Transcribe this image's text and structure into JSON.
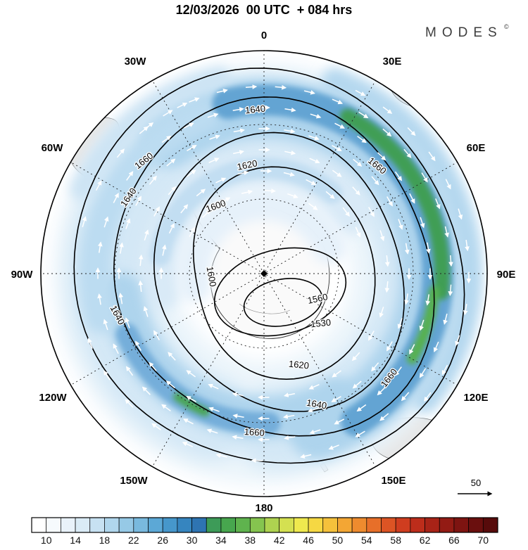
{
  "title": "12/03/2026  00 UTC  + 084 hrs",
  "logo": {
    "text": "MODES",
    "sup": "©"
  },
  "map": {
    "lon_labels": [
      "0",
      "30E",
      "60E",
      "90E",
      "120E",
      "150E",
      "180",
      "150W",
      "120W",
      "90W",
      "60W",
      "30W"
    ],
    "contour_labels": [
      "1640",
      "1660",
      "1660",
      "1620",
      "1600",
      "1640",
      "1600",
      "1560",
      "1530",
      "1620",
      "1640",
      "1660",
      "1660",
      "1640"
    ]
  },
  "ref_arrow": {
    "label": "50"
  },
  "colorbar": {
    "ticks": [
      "10",
      "14",
      "18",
      "22",
      "26",
      "30",
      "34",
      "38",
      "42",
      "46",
      "50",
      "54",
      "58",
      "62",
      "66",
      "70"
    ],
    "colors": [
      "#ffffff",
      "#f6fafd",
      "#e9f2fa",
      "#daebf6",
      "#c7e1f2",
      "#b0d6ed",
      "#96c9e6",
      "#79b9de",
      "#5ca8d6",
      "#4697cb",
      "#3685bf",
      "#2e74b2",
      "#3d9b58",
      "#47a64e",
      "#5fb34e",
      "#85c44f",
      "#aed250",
      "#d4e051",
      "#efe94e",
      "#f6d843",
      "#f5c13b",
      "#f3a634",
      "#ee8b2e",
      "#e76f29",
      "#dc5424",
      "#cf3d1f",
      "#bd2d1b",
      "#a82317",
      "#931b14",
      "#7e1411",
      "#6a0f0e",
      "#570b0b"
    ]
  },
  "chart_data": {
    "type": "heatmap",
    "title": "12/03/2026 00 UTC + 084 hrs",
    "projection": "south polar stereographic",
    "longitude_labels": [
      "0",
      "30E",
      "60E",
      "90E",
      "120E",
      "150E",
      "180",
      "150W",
      "120W",
      "90W",
      "60W",
      "30W"
    ],
    "contour_levels_labeled": [
      1530,
      1560,
      1600,
      1620,
      1640,
      1660
    ],
    "colorbar_ticks": [
      10,
      14,
      18,
      22,
      26,
      30,
      34,
      38,
      42,
      46,
      50,
      54,
      58,
      62,
      66,
      70
    ],
    "reference_vector": 50,
    "legend_position": "bottom",
    "overlays": [
      "filled shading",
      "black height contours",
      "white wind vectors",
      "dashed lat-lon graticule"
    ]
  }
}
